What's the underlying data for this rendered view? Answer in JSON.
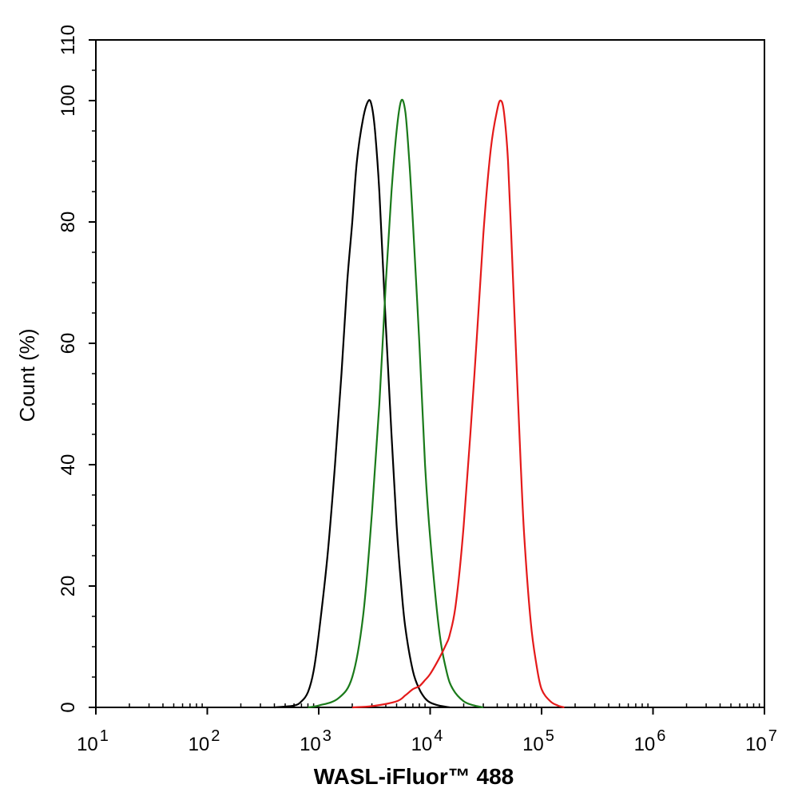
{
  "chart_data": {
    "type": "line",
    "xlabel": "WASL-iFluor™ 488",
    "ylabel": "Count  (%)",
    "x_scale": "log",
    "xlim": [
      10,
      10000000
    ],
    "ylim": [
      0,
      110
    ],
    "x_ticks": [
      {
        "value": 10,
        "base": "10",
        "exp": "1"
      },
      {
        "value": 100,
        "base": "10",
        "exp": "2"
      },
      {
        "value": 1000,
        "base": "10",
        "exp": "3"
      },
      {
        "value": 10000,
        "base": "10",
        "exp": "4"
      },
      {
        "value": 100000,
        "base": "10",
        "exp": "5"
      },
      {
        "value": 1000000,
        "base": "10",
        "exp": "6"
      },
      {
        "value": 10000000,
        "base": "10",
        "exp": "7"
      }
    ],
    "y_ticks": [
      0,
      20,
      40,
      60,
      80,
      100,
      110
    ],
    "grid": false,
    "legend": "none",
    "series": [
      {
        "color": "#000000",
        "points": [
          [
            400,
            0
          ],
          [
            600,
            0.3
          ],
          [
            700,
            1
          ],
          [
            800,
            2.5
          ],
          [
            900,
            6
          ],
          [
            1000,
            12
          ],
          [
            1200,
            25
          ],
          [
            1400,
            40
          ],
          [
            1600,
            55
          ],
          [
            1800,
            70
          ],
          [
            2000,
            80
          ],
          [
            2200,
            90
          ],
          [
            2500,
            97
          ],
          [
            2800,
            100
          ],
          [
            3000,
            99
          ],
          [
            3200,
            95
          ],
          [
            3500,
            85
          ],
          [
            4000,
            63
          ],
          [
            4500,
            45
          ],
          [
            5000,
            30
          ],
          [
            5500,
            20
          ],
          [
            6000,
            13
          ],
          [
            7000,
            6
          ],
          [
            8000,
            3
          ],
          [
            9000,
            1.5
          ],
          [
            10000,
            0.8
          ],
          [
            12000,
            0.3
          ],
          [
            15000,
            0
          ]
        ]
      },
      {
        "color": "#1a7a1a",
        "points": [
          [
            800,
            0
          ],
          [
            1000,
            0.3
          ],
          [
            1500,
            1.5
          ],
          [
            2000,
            5
          ],
          [
            2500,
            15
          ],
          [
            3000,
            32
          ],
          [
            3500,
            50
          ],
          [
            4000,
            70
          ],
          [
            4500,
            85
          ],
          [
            5000,
            95
          ],
          [
            5500,
            100
          ],
          [
            6000,
            98
          ],
          [
            6500,
            90
          ],
          [
            7000,
            80
          ],
          [
            8000,
            60
          ],
          [
            9000,
            40
          ],
          [
            10000,
            28
          ],
          [
            12000,
            13
          ],
          [
            14000,
            6
          ],
          [
            16000,
            3
          ],
          [
            20000,
            1
          ],
          [
            25000,
            0.3
          ],
          [
            30000,
            0
          ]
        ]
      },
      {
        "color": "#e41a1a",
        "points": [
          [
            2000,
            0
          ],
          [
            3000,
            0.2
          ],
          [
            5000,
            1
          ],
          [
            6000,
            2
          ],
          [
            7000,
            3
          ],
          [
            8000,
            3.5
          ],
          [
            9000,
            4.5
          ],
          [
            10000,
            5.5
          ],
          [
            12000,
            8
          ],
          [
            14000,
            10.5
          ],
          [
            15000,
            12
          ],
          [
            17000,
            17
          ],
          [
            20000,
            30
          ],
          [
            25000,
            55
          ],
          [
            30000,
            78
          ],
          [
            35000,
            92
          ],
          [
            40000,
            98.5
          ],
          [
            43000,
            100
          ],
          [
            46000,
            98
          ],
          [
            50000,
            90
          ],
          [
            55000,
            72
          ],
          [
            60000,
            55
          ],
          [
            65000,
            40
          ],
          [
            70000,
            28
          ],
          [
            80000,
            14
          ],
          [
            90000,
            7
          ],
          [
            100000,
            3
          ],
          [
            120000,
            1
          ],
          [
            140000,
            0.3
          ],
          [
            160000,
            0
          ]
        ]
      }
    ]
  }
}
